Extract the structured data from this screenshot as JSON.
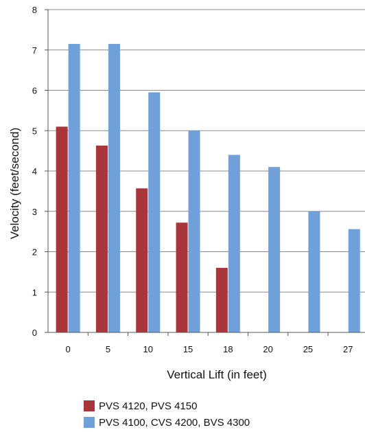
{
  "chart_data": {
    "type": "bar",
    "categories": [
      "0",
      "5",
      "10",
      "15",
      "18",
      "20",
      "25",
      "27"
    ],
    "series": [
      {
        "name": "PVS 4120, PVS 4150",
        "color": "#a8363b",
        "values": [
          5.1,
          4.63,
          3.57,
          2.72,
          1.6,
          null,
          null,
          null
        ]
      },
      {
        "name": "PVS 4100, CVS 4200, BVS 4300",
        "color": "#6fa0da",
        "values": [
          7.15,
          7.15,
          5.95,
          5.0,
          4.4,
          4.1,
          3.0,
          2.56
        ]
      }
    ],
    "xlabel": "Vertical Lift (in feet)",
    "ylabel": "Velocity (feet/second)",
    "ylim": [
      0,
      8
    ],
    "yticks": [
      "0",
      "1",
      "2",
      "3",
      "4",
      "5",
      "6",
      "7",
      "8"
    ],
    "grid": true,
    "legend_position": "bottom"
  }
}
